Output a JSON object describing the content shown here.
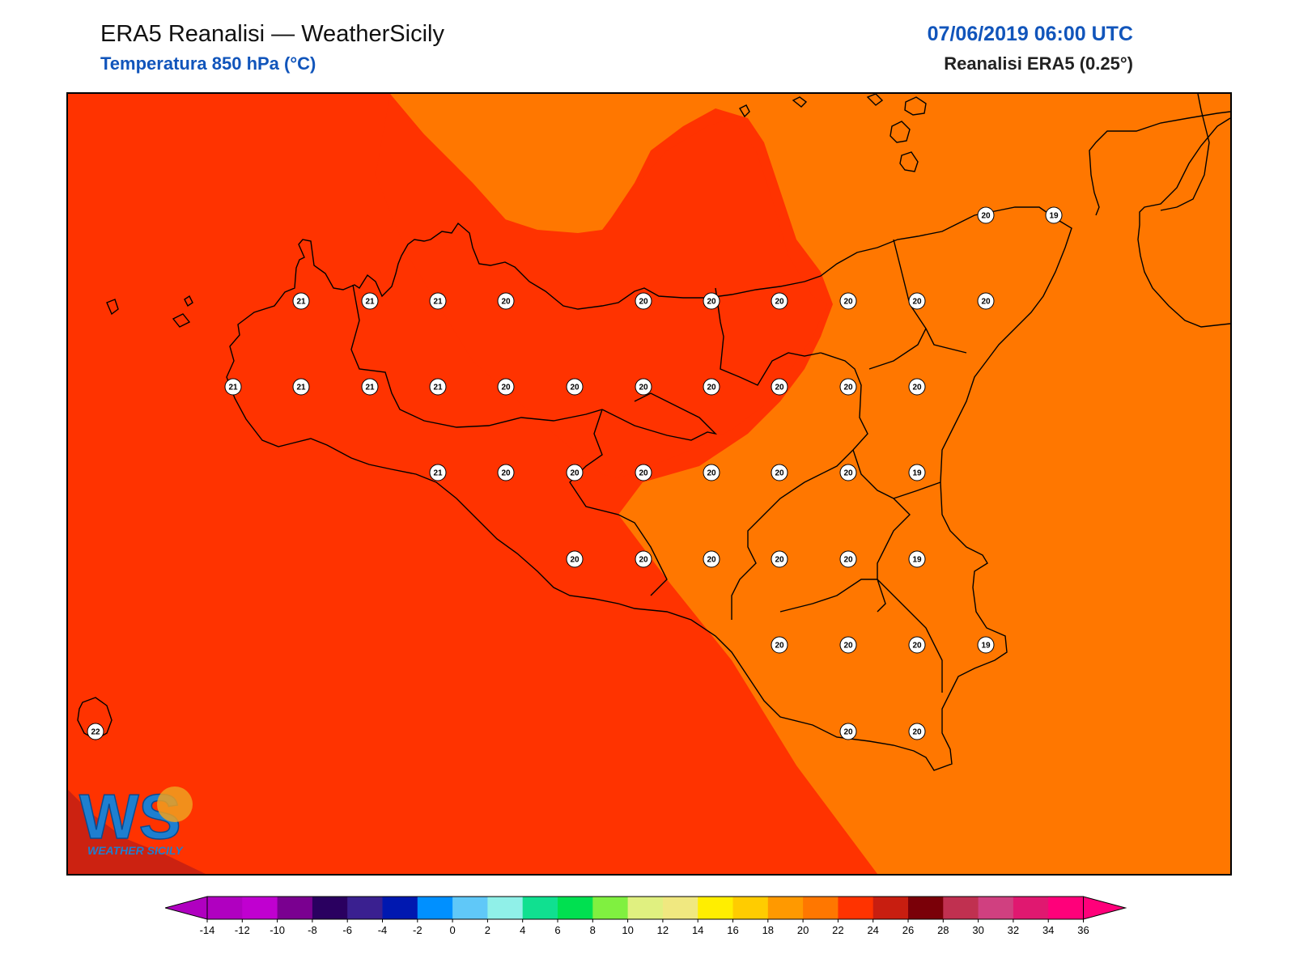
{
  "header": {
    "title": "ERA5 Reanalisi — WeatherSicily",
    "subtitle": "Temperatura 850 hPa (°C)",
    "datetime": "07/06/2019 06:00 UTC",
    "source": "Reanalisi ERA5 (0.25°)"
  },
  "map": {
    "region": "Sicily",
    "fill_colors": {
      "band_20_22": "#ff3300",
      "band_18_20": "#ff7700",
      "band_22_24": "#cc2211"
    },
    "coastline_color": "#000000",
    "station_values": [
      {
        "value": "20"
      },
      {
        "value": "19"
      },
      {
        "value": "21"
      },
      {
        "value": "21"
      },
      {
        "value": "21"
      },
      {
        "value": "20"
      },
      {
        "value": "20"
      },
      {
        "value": "20"
      },
      {
        "value": "20"
      },
      {
        "value": "20"
      },
      {
        "value": "20"
      },
      {
        "value": "20"
      },
      {
        "value": "21"
      },
      {
        "value": "21"
      },
      {
        "value": "21"
      },
      {
        "value": "21"
      },
      {
        "value": "20"
      },
      {
        "value": "20"
      },
      {
        "value": "20"
      },
      {
        "value": "20"
      },
      {
        "value": "20"
      },
      {
        "value": "20"
      },
      {
        "value": "20"
      },
      {
        "value": "21"
      },
      {
        "value": "20"
      },
      {
        "value": "20"
      },
      {
        "value": "20"
      },
      {
        "value": "20"
      },
      {
        "value": "20"
      },
      {
        "value": "20"
      },
      {
        "value": "19"
      },
      {
        "value": "20"
      },
      {
        "value": "20"
      },
      {
        "value": "20"
      },
      {
        "value": "20"
      },
      {
        "value": "20"
      },
      {
        "value": "19"
      },
      {
        "value": "20"
      },
      {
        "value": "20"
      },
      {
        "value": "20"
      },
      {
        "value": "19"
      },
      {
        "value": "22"
      },
      {
        "value": "20"
      },
      {
        "value": "20"
      }
    ]
  },
  "logo": {
    "letters": "WS",
    "name": "WEATHER SICILY"
  },
  "colorbar": {
    "ticks": [
      "-14",
      "-12",
      "-10",
      "-8",
      "-6",
      "-4",
      "-2",
      "0",
      "2",
      "4",
      "6",
      "8",
      "10",
      "12",
      "14",
      "16",
      "18",
      "20",
      "22",
      "24",
      "26",
      "28",
      "30",
      "32",
      "34",
      "36"
    ],
    "colors": [
      "#b000c0",
      "#c000d0",
      "#7a0090",
      "#2a0060",
      "#3a2090",
      "#0018b0",
      "#0090ff",
      "#60c8f8",
      "#90f0e8",
      "#10e090",
      "#00e050",
      "#80f040",
      "#e0f080",
      "#f0e880",
      "#ffee00",
      "#ffcc00",
      "#ff9900",
      "#ff7700",
      "#ff3300",
      "#c81e10",
      "#7a0008",
      "#c03050",
      "#d04080",
      "#e01870",
      "#ff007a"
    ],
    "low_arrow_color": "#b000c0",
    "high_arrow_color": "#ff007a"
  }
}
